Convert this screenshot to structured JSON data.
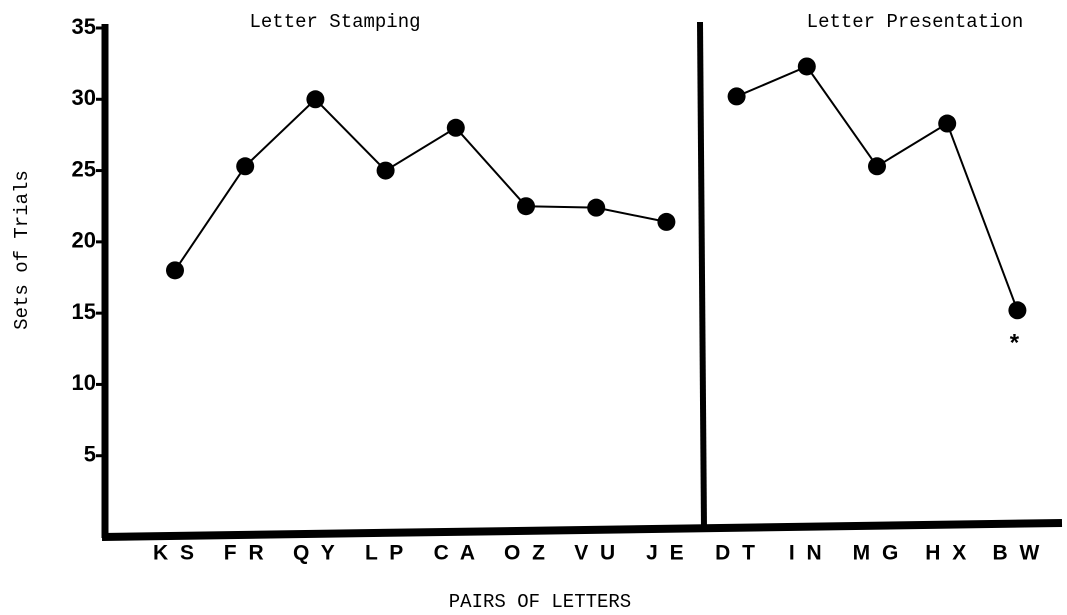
{
  "chart_data": {
    "type": "line",
    "categories": [
      "K S",
      "F R",
      "Q Y",
      "L P",
      "C A",
      "O Z",
      "V U",
      "J E",
      "D T",
      "I N",
      "M G",
      "H X",
      "B W"
    ],
    "series": [
      {
        "name": "Letter Stamping",
        "color": "#000000",
        "values": [
          18,
          25.3,
          30,
          25,
          28,
          22.5,
          22.4,
          21.4,
          null,
          null,
          null,
          null,
          null
        ]
      },
      {
        "name": "Letter Presentation",
        "color": "#000000",
        "values": [
          null,
          null,
          null,
          null,
          null,
          null,
          null,
          null,
          30.2,
          32.3,
          25.3,
          28.3,
          15.2
        ]
      }
    ],
    "annotation": "*",
    "xlabel": "PAIRS OF LETTERS",
    "ylabel": "Sets of Trials",
    "ylim": [
      0,
      35
    ],
    "yticks": [
      5,
      10,
      15,
      20,
      25,
      30,
      35
    ],
    "grid": false
  }
}
